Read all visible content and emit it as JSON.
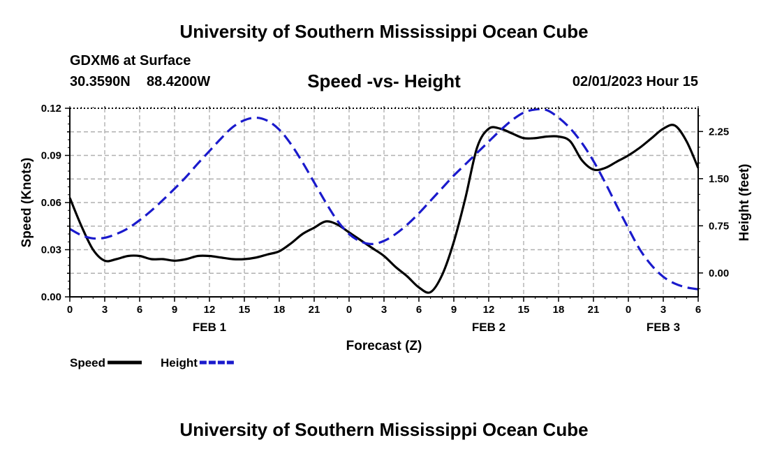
{
  "header": {
    "title": "University of Southern Mississippi Ocean Cube",
    "station": "GDXM6 at Surface",
    "lat": "30.3590N",
    "lon": "88.4200W",
    "subtitle": "Speed -vs- Height",
    "datetime": "02/01/2023 Hour 15"
  },
  "footer": {
    "title": "University of Southern Mississippi Ocean Cube"
  },
  "chart_data": {
    "type": "line",
    "title": "Speed -vs- Height",
    "xlabel": "Forecast (Z)",
    "ylabel_left": "Speed (Knots)",
    "ylabel_right": "Height (feet)",
    "x_range": [
      0,
      54
    ],
    "x_ticks": [
      {
        "x": 0,
        "label": "0"
      },
      {
        "x": 3,
        "label": "3"
      },
      {
        "x": 6,
        "label": "6"
      },
      {
        "x": 9,
        "label": "9"
      },
      {
        "x": 12,
        "label": "12"
      },
      {
        "x": 15,
        "label": "15"
      },
      {
        "x": 18,
        "label": "18"
      },
      {
        "x": 21,
        "label": "21"
      },
      {
        "x": 24,
        "label": "0"
      },
      {
        "x": 27,
        "label": "3"
      },
      {
        "x": 30,
        "label": "6"
      },
      {
        "x": 33,
        "label": "9"
      },
      {
        "x": 36,
        "label": "12"
      },
      {
        "x": 39,
        "label": "15"
      },
      {
        "x": 42,
        "label": "18"
      },
      {
        "x": 45,
        "label": "21"
      },
      {
        "x": 48,
        "label": "0"
      },
      {
        "x": 51,
        "label": "3"
      },
      {
        "x": 54,
        "label": "6"
      }
    ],
    "date_labels": [
      {
        "x": 12,
        "label": "FEB 1"
      },
      {
        "x": 36,
        "label": "FEB 2"
      },
      {
        "x": 51,
        "label": "FEB 3"
      }
    ],
    "y_left": {
      "min": 0,
      "max": 0.12,
      "ticks": [
        "0.00",
        "0.03",
        "0.06",
        "0.09",
        "0.12"
      ]
    },
    "y_right": {
      "min": -0.38,
      "max": 2.62,
      "ticks": [
        "0.00",
        "0.75",
        "1.50",
        "2.25"
      ]
    },
    "grid": true,
    "series": [
      {
        "name": "Speed",
        "axis": "left",
        "color": "#000000",
        "style": "solid",
        "x": [
          0,
          1,
          2,
          3,
          4,
          5,
          6,
          7,
          8,
          9,
          10,
          11,
          12,
          13,
          14,
          15,
          16,
          17,
          18,
          19,
          20,
          21,
          22,
          23,
          24,
          25,
          26,
          27,
          28,
          29,
          30,
          31,
          32,
          33,
          34,
          35,
          36,
          37,
          38,
          39,
          40,
          41,
          42,
          43,
          44,
          45,
          46,
          47,
          48,
          49,
          50,
          51,
          52,
          53,
          54
        ],
        "values": [
          0.063,
          0.045,
          0.03,
          0.023,
          0.024,
          0.026,
          0.026,
          0.024,
          0.024,
          0.023,
          0.024,
          0.026,
          0.026,
          0.025,
          0.024,
          0.024,
          0.025,
          0.027,
          0.029,
          0.034,
          0.04,
          0.044,
          0.048,
          0.046,
          0.041,
          0.036,
          0.031,
          0.026,
          0.019,
          0.013,
          0.006,
          0.003,
          0.014,
          0.035,
          0.063,
          0.095,
          0.107,
          0.107,
          0.104,
          0.101,
          0.101,
          0.102,
          0.102,
          0.099,
          0.087,
          0.081,
          0.082,
          0.086,
          0.09,
          0.095,
          0.101,
          0.107,
          0.109,
          0.099,
          0.082
        ]
      },
      {
        "name": "Height",
        "axis": "right",
        "color": "#1a1acc",
        "style": "dashed",
        "x": [
          0,
          1,
          2,
          3,
          4,
          5,
          6,
          7,
          8,
          9,
          10,
          11,
          12,
          13,
          14,
          15,
          16,
          17,
          18,
          19,
          20,
          21,
          22,
          23,
          24,
          25,
          26,
          27,
          28,
          29,
          30,
          31,
          32,
          33,
          34,
          35,
          36,
          37,
          38,
          39,
          40,
          41,
          42,
          43,
          44,
          45,
          46,
          47,
          48,
          49,
          50,
          51,
          52,
          53,
          54
        ],
        "values": [
          0.7,
          0.6,
          0.55,
          0.56,
          0.62,
          0.71,
          0.84,
          0.99,
          1.16,
          1.34,
          1.53,
          1.74,
          1.94,
          2.14,
          2.32,
          2.43,
          2.47,
          2.42,
          2.28,
          2.05,
          1.76,
          1.44,
          1.12,
          0.83,
          0.62,
          0.5,
          0.46,
          0.51,
          0.62,
          0.77,
          0.95,
          1.15,
          1.35,
          1.55,
          1.73,
          1.91,
          2.09,
          2.27,
          2.43,
          2.55,
          2.6,
          2.59,
          2.47,
          2.3,
          2.07,
          1.78,
          1.44,
          1.07,
          0.71,
          0.37,
          0.12,
          -0.06,
          -0.17,
          -0.23,
          -0.26
        ]
      }
    ],
    "legend": {
      "position": "bottom-left",
      "items": [
        {
          "label": "Speed",
          "color": "#000000",
          "style": "solid"
        },
        {
          "label": "Height",
          "color": "#1a1acc",
          "style": "dashed"
        }
      ]
    }
  }
}
